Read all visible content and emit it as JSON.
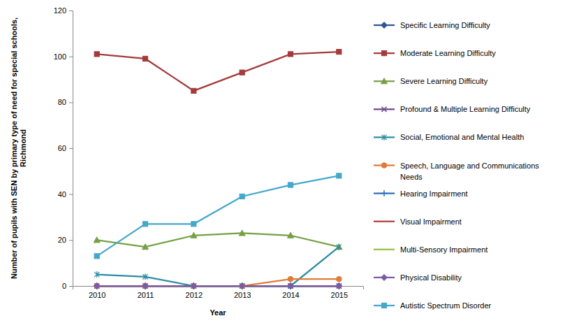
{
  "chart_data": {
    "type": "line",
    "x_label": "Year",
    "y_label": "Number of pupils with SEN by primary type of need for special schools, Richmond",
    "categories": [
      "2010",
      "2011",
      "2012",
      "2013",
      "2014",
      "2015"
    ],
    "ylim": [
      0,
      120
    ],
    "yticks": [
      0,
      20,
      40,
      60,
      80,
      100,
      120
    ],
    "grid": false,
    "legend": "right",
    "series": [
      {
        "name": "Specific Learning Difficulty",
        "color": "#2f5597",
        "marker": "diamond",
        "values": [
          0,
          0,
          0,
          0,
          0,
          0
        ]
      },
      {
        "name": "Moderate Learning Difficulty",
        "color": "#a33b3b",
        "marker": "square",
        "values": [
          101,
          99,
          85,
          93,
          101,
          102
        ]
      },
      {
        "name": "Severe Learning Difficulty",
        "color": "#77a045",
        "marker": "triangle",
        "values": [
          20,
          17,
          22,
          23,
          22,
          17
        ]
      },
      {
        "name": "Profound & Multiple Learning Difficulty",
        "color": "#6a4a8c",
        "marker": "x",
        "values": [
          0,
          0,
          0,
          0,
          0,
          0
        ]
      },
      {
        "name": "Social, Emotional and Mental Health",
        "color": "#2e8ca3",
        "marker": "asterisk",
        "values": [
          5,
          4,
          0,
          0,
          0,
          17
        ]
      },
      {
        "name": "Speech, Language and Communications Needs",
        "color": "#e07b39",
        "marker": "circle",
        "values": [
          0,
          0,
          0,
          0,
          3,
          3
        ]
      },
      {
        "name": "Hearing Impairment",
        "color": "#2c6fb8",
        "marker": "plus",
        "values": [
          0,
          0,
          0,
          0,
          0,
          0
        ]
      },
      {
        "name": "Visual Impairment",
        "color": "#b23b3b",
        "marker": "none",
        "values": [
          0,
          0,
          0,
          0,
          0,
          0
        ]
      },
      {
        "name": "Multi-Sensory Impairment",
        "color": "#93c047",
        "marker": "none",
        "values": [
          0,
          0,
          0,
          0,
          0,
          0
        ]
      },
      {
        "name": "Physical Disability",
        "color": "#7b5aa6",
        "marker": "diamond",
        "values": [
          0,
          0,
          0,
          0,
          0,
          0
        ]
      },
      {
        "name": "Autistic Spectrum Disorder",
        "color": "#45a7c9",
        "marker": "square",
        "values": [
          13,
          27,
          27,
          39,
          44,
          48
        ]
      }
    ]
  }
}
